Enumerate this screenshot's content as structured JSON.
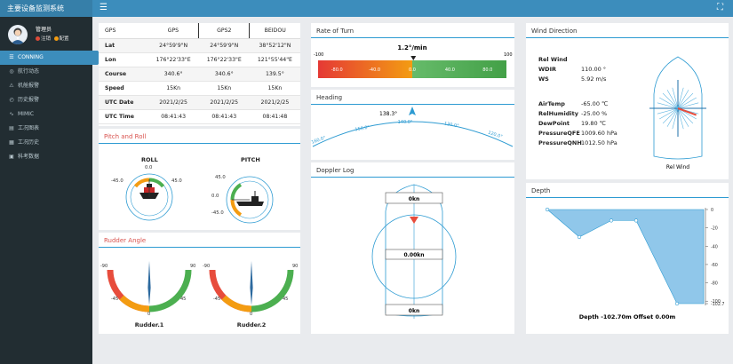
{
  "app": {
    "title": "主要设备监测系统"
  },
  "user": {
    "name": "管理员",
    "logout": "注销",
    "settings": "配置"
  },
  "sidebar": {
    "items": [
      {
        "label": "CONNING",
        "icon": "list-icon"
      },
      {
        "label": "航行动态",
        "icon": "compass-icon"
      },
      {
        "label": "机舱报警",
        "icon": "warning-icon"
      },
      {
        "label": "历史报警",
        "icon": "history-icon"
      },
      {
        "label": "MIMIC",
        "icon": "pulse-icon"
      },
      {
        "label": "工况图表",
        "icon": "chart-icon"
      },
      {
        "label": "工况历史",
        "icon": "table-icon"
      },
      {
        "label": "科考数据",
        "icon": "data-icon"
      }
    ]
  },
  "gps": {
    "headers": [
      "GPS",
      "GPS",
      "GPS2",
      "BEIDOU"
    ],
    "rows": [
      [
        "Lat",
        "24°59'9\"N",
        "24°59'9\"N",
        "38°52'12\"N"
      ],
      [
        "Lon",
        "176°22'33\"E",
        "176°22'33\"E",
        "121°55'44\"E"
      ],
      [
        "Course",
        "340.6°",
        "340.6°",
        "139.5°"
      ],
      [
        "Speed",
        "15Kn",
        "15Kn",
        "15Kn"
      ],
      [
        "UTC Date",
        "2021/2/25",
        "2021/2/25",
        "2021/2/25"
      ],
      [
        "UTC Time",
        "08:41:43",
        "08:41:43",
        "08:41:48"
      ]
    ]
  },
  "pitch_roll": {
    "title": "Pitch and Roll",
    "roll_label": "ROLL",
    "pitch_label": "PITCH",
    "roll_ticks": {
      "top": "0.0",
      "left": "-45.0",
      "right": "45.0"
    },
    "pitch_ticks": {
      "top": "45.0",
      "left": "0.0",
      "bottom": "-45.0"
    },
    "roll_value": 0,
    "pitch_value": 0
  },
  "rudder": {
    "title": "Rudder Angle",
    "labels": [
      "Rudder.1",
      "Rudder.2"
    ],
    "ticks": {
      "top_left": "-90",
      "top_right": "90",
      "mid_left": "-45",
      "mid_right": "45",
      "bottom": "0"
    },
    "values": [
      0,
      0
    ]
  },
  "rate_of_turn": {
    "title": "Rate of Turn",
    "value_text": "1.2°/min",
    "value": 1.2,
    "scale": {
      "min": "-100",
      "max": "100"
    },
    "ticks": [
      "-80.0",
      "-40.0",
      "0.0",
      "40.0",
      "80.0"
    ]
  },
  "heading": {
    "title": "Heading",
    "value_text": "138.3°",
    "value": 138.3,
    "ticks": [
      "160.0°",
      "150.0°",
      "140.0°",
      "130.0°",
      "120.0°"
    ]
  },
  "doppler": {
    "title": "Doppler Log",
    "bow": "0kn",
    "center": "0.00kn",
    "stern": "0kn"
  },
  "wind": {
    "title": "Wind Direction",
    "rel_wind": "Rel Wind",
    "wdir_label": "WDIR",
    "wdir": "110.00 °",
    "ws_label": "WS",
    "ws": "5.92 m/s",
    "air_temp_label": "AirTemp",
    "air_temp": "-65.00 ℃",
    "rel_humidity_label": "RelHumidity",
    "rel_humidity": "-25.00 %",
    "dew_point_label": "DewPoint",
    "dew_point": "19.80 ℃",
    "pressure_qfe_label": "PressureQFE",
    "pressure_qfe": "1009.60 hPa",
    "pressure_qnh_label": "PressureQNH",
    "pressure_qnh": "1012.50 hPa",
    "rose_caption": "Rel Wind",
    "direction_deg": 110
  },
  "depth": {
    "title": "Depth",
    "footer": "Depth -102.70m   Offset 0.00m",
    "y_ticks": [
      "0",
      "-20",
      "-40",
      "-60",
      "-80",
      "-100",
      "-102.7"
    ],
    "profile": [
      0,
      -30,
      -12,
      -12,
      -102.7,
      -102.7
    ]
  },
  "colors": {
    "accent": "#3c8dbc",
    "sidebar": "#222d32",
    "green": "#4caf50",
    "orange": "#f39c12",
    "red": "#e74c3c"
  }
}
